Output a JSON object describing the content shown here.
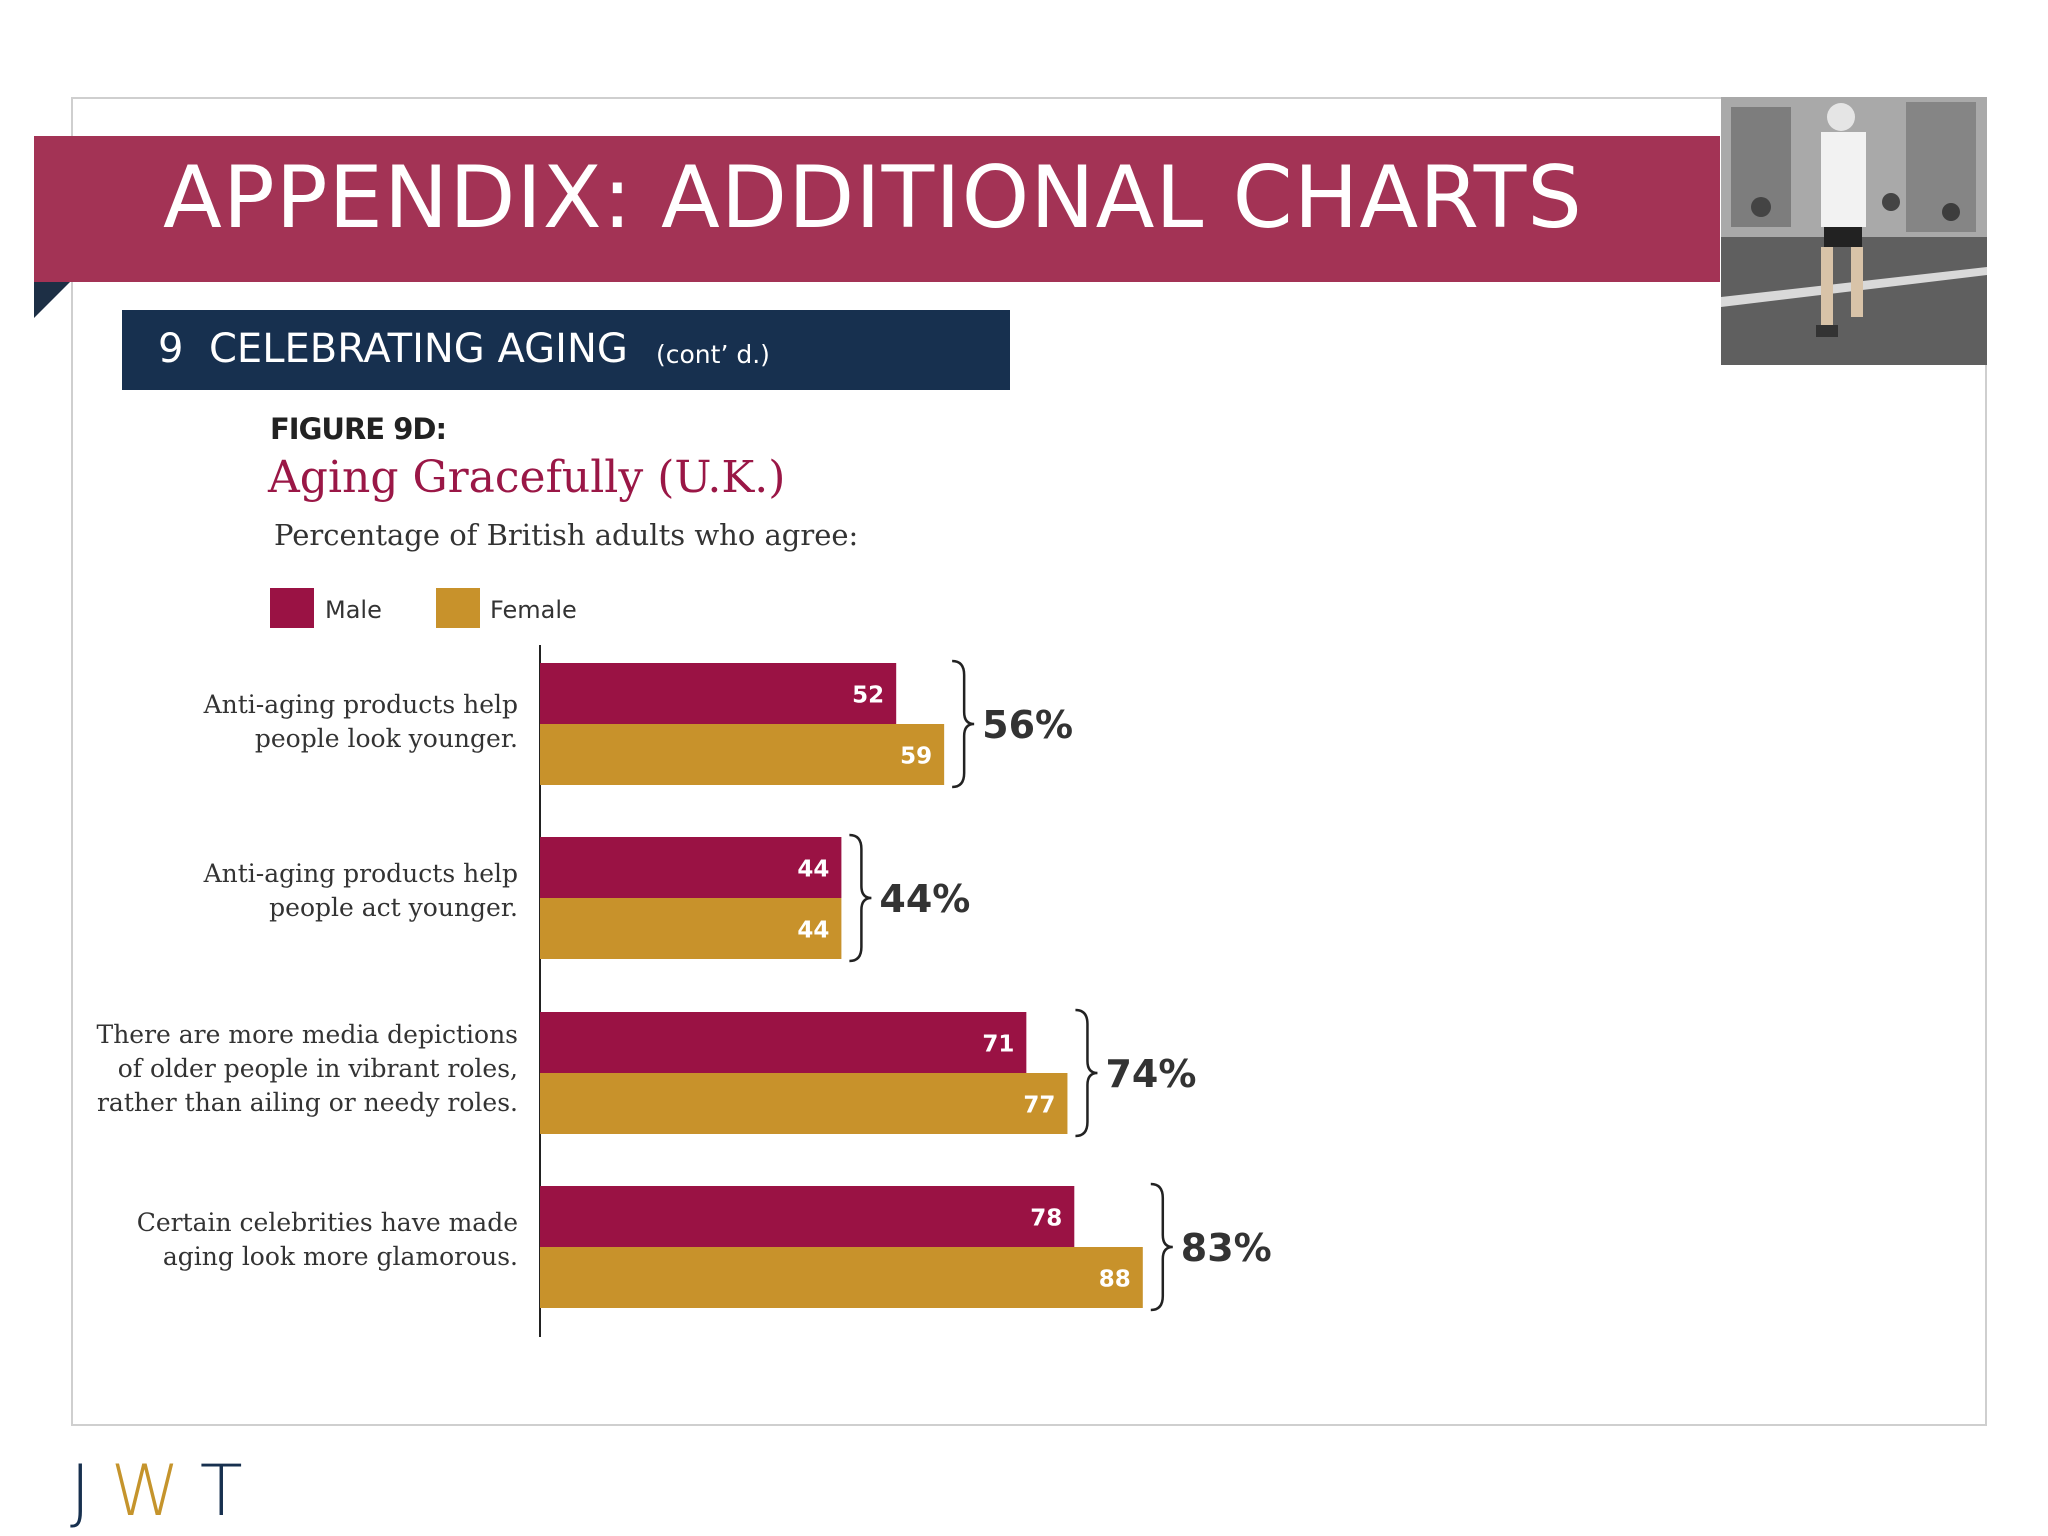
{
  "header": {
    "title": "APPENDIX: ADDITIONAL CHARTS",
    "banner_color": "#a33355"
  },
  "section": {
    "number": "9",
    "title": "CELEBRATING AGING",
    "subtitle": "(cont’ d.)",
    "color": "#17304f"
  },
  "photo": {
    "icon": "runner-photo"
  },
  "logo": {
    "j": "J",
    "w": "W",
    "t": "T"
  },
  "chart_data": {
    "type": "bar",
    "orientation": "horizontal",
    "figure_label": "FIGURE 9D:",
    "title": "Aging Gracefully (U.K.)",
    "subtitle": "Percentage of  British adults who agree:",
    "legend_position": "top-left",
    "categories": [
      "Anti-aging products help\npeople look younger.",
      "Anti-aging products help\npeople act younger.",
      "There are more media depictions\nof older people in vibrant roles,\nrather than ailing or needy roles.",
      "Certain celebrities have made\naging look more glamorous."
    ],
    "series": [
      {
        "name": "Male",
        "color": "#9a1244",
        "values": [
          52,
          44,
          71,
          78
        ]
      },
      {
        "name": "Female",
        "color": "#c8922b",
        "values": [
          59,
          44,
          77,
          88
        ]
      }
    ],
    "totals": [
      "56%",
      "44%",
      "74%",
      "83%"
    ],
    "xlim": [
      0,
      100
    ],
    "grid": false
  }
}
